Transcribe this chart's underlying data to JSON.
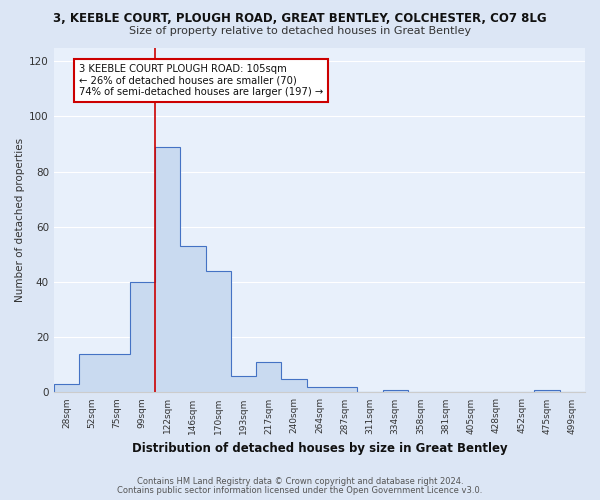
{
  "title1": "3, KEEBLE COURT, PLOUGH ROAD, GREAT BENTLEY, COLCHESTER, CO7 8LG",
  "title2": "Size of property relative to detached houses in Great Bentley",
  "xlabel": "Distribution of detached houses by size in Great Bentley",
  "ylabel": "Number of detached properties",
  "categories": [
    "28sqm",
    "52sqm",
    "75sqm",
    "99sqm",
    "122sqm",
    "146sqm",
    "170sqm",
    "193sqm",
    "217sqm",
    "240sqm",
    "264sqm",
    "287sqm",
    "311sqm",
    "334sqm",
    "358sqm",
    "381sqm",
    "405sqm",
    "428sqm",
    "452sqm",
    "475sqm",
    "499sqm"
  ],
  "values": [
    3,
    14,
    14,
    40,
    89,
    53,
    44,
    6,
    11,
    5,
    2,
    2,
    0,
    1,
    0,
    0,
    0,
    0,
    0,
    1,
    0
  ],
  "bar_fill_color": "#c9daf0",
  "bar_edge_color": "#4472c4",
  "bg_color": "#dce6f5",
  "plot_bg_color": "#e8f0fb",
  "grid_color": "#ffffff",
  "redline_color": "#cc0000",
  "redline_index": 4,
  "annotation_text": "3 KEEBLE COURT PLOUGH ROAD: 105sqm\n← 26% of detached houses are smaller (70)\n74% of semi-detached houses are larger (197) →",
  "annotation_box_color": "#ffffff",
  "annotation_box_edge": "#cc0000",
  "ylim": [
    0,
    125
  ],
  "yticks": [
    0,
    20,
    40,
    60,
    80,
    100,
    120
  ],
  "footer1": "Contains HM Land Registry data © Crown copyright and database right 2024.",
  "footer2": "Contains public sector information licensed under the Open Government Licence v3.0."
}
